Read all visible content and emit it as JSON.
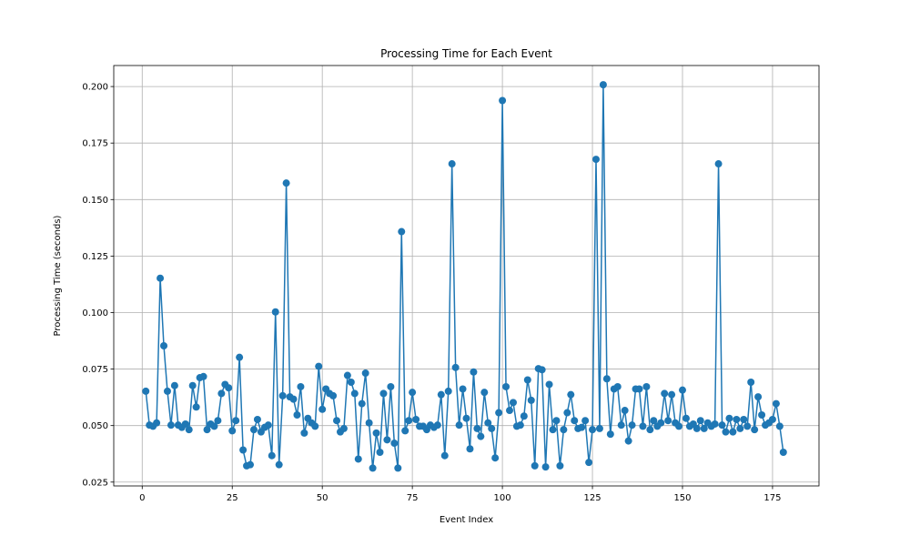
{
  "chart_data": {
    "type": "line",
    "title": "Processing Time for Each Event",
    "xlabel": "Event Index",
    "ylabel": "Processing Time (seconds)",
    "xlim": [
      -7.9,
      187.9
    ],
    "ylim": [
      0.0233,
      0.2093
    ],
    "x_ticks": [
      0,
      25,
      50,
      75,
      100,
      125,
      150,
      175
    ],
    "y_ticks": [
      0.025,
      0.05,
      0.075,
      0.1,
      0.125,
      0.15,
      0.175,
      0.2
    ],
    "y_tick_labels": [
      "0.025",
      "0.050",
      "0.075",
      "0.100",
      "0.125",
      "0.150",
      "0.175",
      "0.200"
    ],
    "grid": true,
    "marker": "circle",
    "color": "#1f77b4",
    "series": [
      {
        "x": [
          1,
          2,
          3,
          4,
          5,
          6,
          7,
          8,
          9,
          10,
          11,
          12,
          13,
          14,
          15,
          16,
          17,
          18,
          19,
          20,
          21,
          22,
          23,
          24,
          25,
          26,
          27,
          28,
          29,
          30,
          31,
          32,
          33,
          34,
          35,
          36,
          37,
          38,
          39,
          40,
          41,
          42,
          43,
          44,
          45,
          46,
          47,
          48,
          49,
          50,
          51,
          52,
          53,
          54,
          55,
          56,
          57,
          58,
          59,
          60,
          61,
          62,
          63,
          64,
          65,
          66,
          67,
          68,
          69,
          70,
          71,
          72,
          73,
          74,
          75,
          76,
          77,
          78,
          79,
          80,
          81,
          82,
          83,
          84,
          85,
          86,
          87,
          88,
          89,
          90,
          91,
          92,
          93,
          94,
          95,
          96,
          97,
          98,
          99,
          100,
          101,
          102,
          103,
          104,
          105,
          106,
          107,
          108,
          109,
          110,
          111,
          112,
          113,
          114,
          115,
          116,
          117,
          118,
          119,
          120,
          121,
          122,
          123,
          124,
          125,
          126,
          127,
          128,
          129,
          130,
          131,
          132,
          133,
          134,
          135,
          136,
          137,
          138,
          139,
          140,
          141,
          142,
          143,
          144,
          145,
          146,
          147,
          148,
          149,
          150,
          151,
          152,
          153,
          154,
          155,
          156,
          157,
          158,
          159,
          160,
          161,
          162,
          163,
          164,
          165,
          166,
          167,
          168,
          169,
          170,
          171,
          172,
          173,
          174,
          175,
          176,
          177,
          178
        ],
        "values": [
          0.0652,
          0.0502,
          0.0497,
          0.0512,
          0.1152,
          0.0853,
          0.0652,
          0.0502,
          0.0677,
          0.0502,
          0.0492,
          0.0507,
          0.0482,
          0.0677,
          0.0582,
          0.0712,
          0.0717,
          0.0482,
          0.0507,
          0.0497,
          0.0522,
          0.0642,
          0.0682,
          0.0667,
          0.0477,
          0.0522,
          0.0802,
          0.0392,
          0.0322,
          0.0327,
          0.0482,
          0.0527,
          0.0472,
          0.0492,
          0.0502,
          0.0367,
          0.1003,
          0.0327,
          0.0632,
          0.1573,
          0.0627,
          0.0617,
          0.0547,
          0.0672,
          0.0467,
          0.0532,
          0.0512,
          0.0497,
          0.0762,
          0.0572,
          0.0662,
          0.0642,
          0.0632,
          0.0522,
          0.0472,
          0.0487,
          0.0722,
          0.0692,
          0.0642,
          0.0352,
          0.0597,
          0.0732,
          0.0512,
          0.0312,
          0.0467,
          0.0382,
          0.0642,
          0.0437,
          0.0672,
          0.0422,
          0.0312,
          0.1358,
          0.0477,
          0.0522,
          0.0647,
          0.0527,
          0.0497,
          0.0497,
          0.0482,
          0.0502,
          0.0492,
          0.0502,
          0.0637,
          0.0367,
          0.0652,
          0.1658,
          0.0757,
          0.0502,
          0.0662,
          0.0532,
          0.0397,
          0.0737,
          0.0487,
          0.0452,
          0.0647,
          0.0512,
          0.0487,
          0.0357,
          0.0557,
          0.1938,
          0.0672,
          0.0567,
          0.0602,
          0.0497,
          0.0502,
          0.0542,
          0.0702,
          0.0612,
          0.0322,
          0.0752,
          0.0747,
          0.0317,
          0.0682,
          0.0482,
          0.0522,
          0.0322,
          0.0482,
          0.0557,
          0.0637,
          0.0522,
          0.0487,
          0.0492,
          0.0522,
          0.0337,
          0.0482,
          0.1678,
          0.0487,
          0.2008,
          0.0707,
          0.0462,
          0.0662,
          0.0672,
          0.0502,
          0.0567,
          0.0432,
          0.0502,
          0.0662,
          0.0662,
          0.0497,
          0.0672,
          0.0482,
          0.0522,
          0.0497,
          0.0512,
          0.0642,
          0.0522,
          0.0637,
          0.0512,
          0.0497,
          0.0657,
          0.0532,
          0.0497,
          0.0507,
          0.0487,
          0.0522,
          0.0487,
          0.0512,
          0.0497,
          0.0507,
          0.1658,
          0.0502,
          0.0472,
          0.0532,
          0.0472,
          0.0527,
          0.0487,
          0.0527,
          0.0497,
          0.0692,
          0.0482,
          0.0627,
          0.0547,
          0.0502,
          0.0512,
          0.0527,
          0.0597,
          0.0497,
          0.0382
        ]
      }
    ]
  }
}
